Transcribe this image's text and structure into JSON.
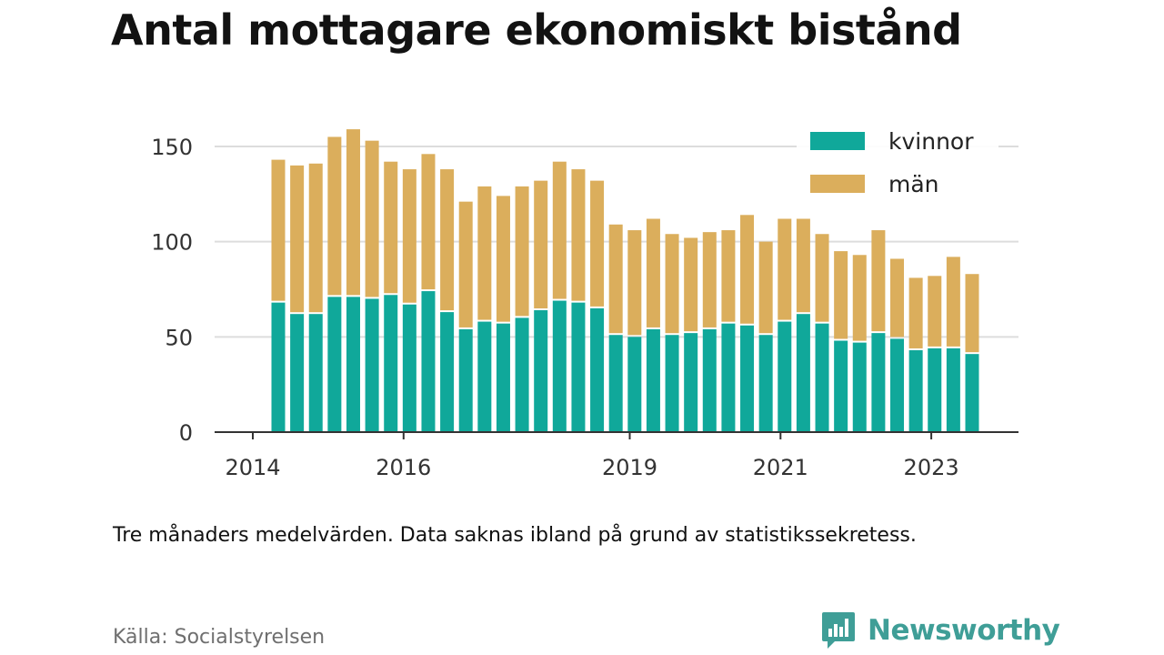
{
  "title": "Antal mottagare ekonomiskt bistånd",
  "note": "Tre månaders medelvärden. Data saknas ibland på grund av statistikssekretess.",
  "source": "Källa: Socialstyrelsen",
  "brand": {
    "name": "Newsworthy",
    "icon": "newsworthy-logo-icon",
    "color": "#3f9e97"
  },
  "colors": {
    "kvinnor": "#10a89a",
    "man": "#dbae5c",
    "grid": "#dddddd",
    "axis": "#333333"
  },
  "chart_data": {
    "type": "bar",
    "stacked": true,
    "legend": "top-right",
    "grid": true,
    "ylim": [
      0,
      160
    ],
    "yticks": [
      0,
      50,
      100,
      150
    ],
    "xticks": [
      "2014",
      "2016",
      "2019",
      "2021",
      "2023"
    ],
    "series": [
      {
        "name": "kvinnor",
        "values": [
          68,
          62,
          62,
          71,
          71,
          70,
          72,
          67,
          74,
          63,
          54,
          58,
          57,
          60,
          64,
          69,
          68,
          65,
          51,
          50,
          54,
          51,
          52,
          54,
          57,
          56,
          51,
          58,
          62,
          57,
          48,
          47,
          52,
          49,
          43,
          44,
          44,
          41
        ]
      },
      {
        "name": "män",
        "values": [
          75,
          78,
          79,
          84,
          88,
          83,
          70,
          71,
          72,
          75,
          67,
          71,
          67,
          69,
          68,
          73,
          70,
          67,
          58,
          56,
          58,
          53,
          50,
          51,
          49,
          58,
          49,
          54,
          50,
          47,
          47,
          46,
          54,
          42,
          38,
          38,
          48,
          42
        ]
      }
    ]
  }
}
